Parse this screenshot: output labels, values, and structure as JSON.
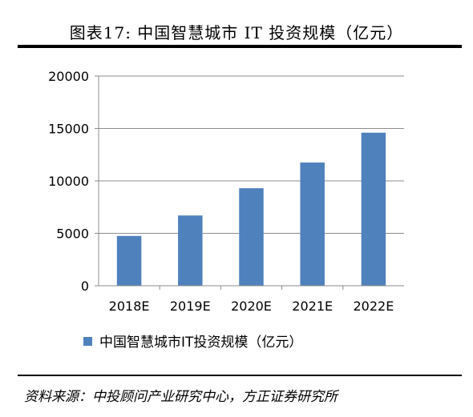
{
  "figure": {
    "title": "图表17:   中国智慧城市 IT 投资规模（亿元）",
    "source": "资料来源：中投顾问产业研究中心，方正证券研究所"
  },
  "chart_data": {
    "type": "bar",
    "categories": [
      "2018E",
      "2019E",
      "2020E",
      "2021E",
      "2022E"
    ],
    "series": [
      {
        "name": "中国智慧城市IT投资规模（亿元）",
        "values": [
          4750,
          6700,
          9300,
          11750,
          14600
        ],
        "color": "#4F81BD"
      }
    ],
    "ylim": [
      0,
      20000
    ],
    "yticks": [
      0,
      5000,
      10000,
      15000,
      20000
    ],
    "grid": true,
    "legend_position": "bottom-left"
  }
}
